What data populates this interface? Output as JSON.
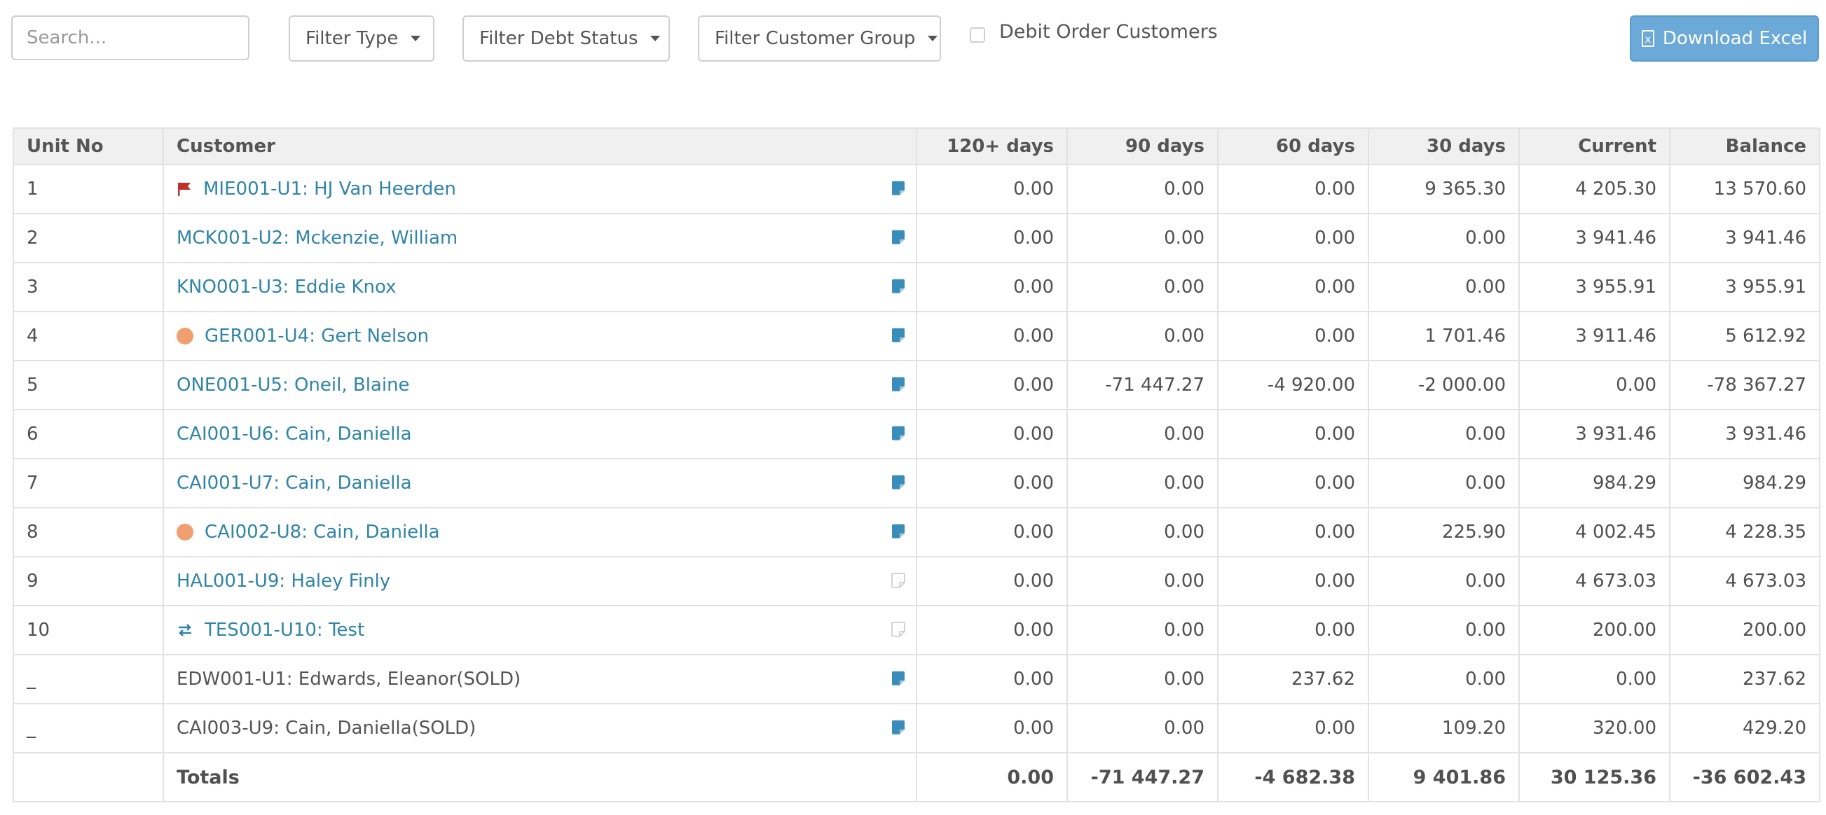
{
  "toolbar": {
    "search_placeholder": "Search...",
    "filter_type": "Filter Type",
    "filter_debt_status": "Filter Debt Status",
    "filter_customer_group": "Filter Customer Group",
    "debit_order_label": "Debit Order Customers",
    "debit_order_checked": false,
    "download_label": "Download Excel"
  },
  "colors": {
    "link": "#2f84a8",
    "accent_button": "#6aa9d8",
    "flag": "#c0302a",
    "dot": "#f0a070",
    "note_filled": "#3a8db8"
  },
  "table": {
    "headers": {
      "unit_no": "Unit No",
      "customer": "Customer",
      "d120": "120+ days",
      "d90": "90 days",
      "d60": "60 days",
      "d30": "30 days",
      "current": "Current",
      "balance": "Balance"
    },
    "rows": [
      {
        "unit": "1",
        "customer": "MIE001-U1: HJ Van Heerden",
        "status_icon": "flag-icon",
        "link": true,
        "note": "filled",
        "d120": "0.00",
        "d90": "0.00",
        "d60": "0.00",
        "d30": "9 365.30",
        "current": "4 205.30",
        "balance": "13 570.60"
      },
      {
        "unit": "2",
        "customer": "MCK001-U2: Mckenzie, William",
        "status_icon": "",
        "link": true,
        "note": "filled",
        "d120": "0.00",
        "d90": "0.00",
        "d60": "0.00",
        "d30": "0.00",
        "current": "3 941.46",
        "balance": "3 941.46"
      },
      {
        "unit": "3",
        "customer": "KNO001-U3: Eddie Knox",
        "status_icon": "",
        "link": true,
        "note": "filled",
        "d120": "0.00",
        "d90": "0.00",
        "d60": "0.00",
        "d30": "0.00",
        "current": "3 955.91",
        "balance": "3 955.91"
      },
      {
        "unit": "4",
        "customer": "GER001-U4: Gert Nelson",
        "status_icon": "dot-icon",
        "link": true,
        "note": "filled",
        "d120": "0.00",
        "d90": "0.00",
        "d60": "0.00",
        "d30": "1 701.46",
        "current": "3 911.46",
        "balance": "5 612.92"
      },
      {
        "unit": "5",
        "customer": "ONE001-U5: Oneil, Blaine",
        "status_icon": "",
        "link": true,
        "note": "filled",
        "d120": "0.00",
        "d90": "-71 447.27",
        "d60": "-4 920.00",
        "d30": "-2 000.00",
        "current": "0.00",
        "balance": "-78 367.27"
      },
      {
        "unit": "6",
        "customer": "CAI001-U6: Cain, Daniella",
        "status_icon": "",
        "link": true,
        "note": "filled",
        "d120": "0.00",
        "d90": "0.00",
        "d60": "0.00",
        "d30": "0.00",
        "current": "3 931.46",
        "balance": "3 931.46"
      },
      {
        "unit": "7",
        "customer": "CAI001-U7: Cain, Daniella",
        "status_icon": "",
        "link": true,
        "note": "filled",
        "d120": "0.00",
        "d90": "0.00",
        "d60": "0.00",
        "d30": "0.00",
        "current": "984.29",
        "balance": "984.29"
      },
      {
        "unit": "8",
        "customer": "CAI002-U8: Cain, Daniella",
        "status_icon": "dot-icon",
        "link": true,
        "note": "filled",
        "d120": "0.00",
        "d90": "0.00",
        "d60": "0.00",
        "d30": "225.90",
        "current": "4 002.45",
        "balance": "4 228.35"
      },
      {
        "unit": "9",
        "customer": "HAL001-U9: Haley Finly",
        "status_icon": "",
        "link": true,
        "note": "empty",
        "d120": "0.00",
        "d90": "0.00",
        "d60": "0.00",
        "d30": "0.00",
        "current": "4 673.03",
        "balance": "4 673.03"
      },
      {
        "unit": "10",
        "customer": "TES001-U10: Test",
        "status_icon": "transfer-icon",
        "link": true,
        "note": "empty",
        "d120": "0.00",
        "d90": "0.00",
        "d60": "0.00",
        "d30": "0.00",
        "current": "200.00",
        "balance": "200.00"
      },
      {
        "unit": "_",
        "customer": "EDW001-U1: Edwards, Eleanor(SOLD)",
        "status_icon": "",
        "link": false,
        "note": "filled",
        "d120": "0.00",
        "d90": "0.00",
        "d60": "237.62",
        "d30": "0.00",
        "current": "0.00",
        "balance": "237.62"
      },
      {
        "unit": "_",
        "customer": "CAI003-U9: Cain, Daniella(SOLD)",
        "status_icon": "",
        "link": false,
        "note": "filled",
        "d120": "0.00",
        "d90": "0.00",
        "d60": "0.00",
        "d30": "109.20",
        "current": "320.00",
        "balance": "429.20"
      }
    ],
    "totals": {
      "label": "Totals",
      "d120": "0.00",
      "d90": "-71 447.27",
      "d60": "-4 682.38",
      "d30": "9 401.86",
      "current": "30 125.36",
      "balance": "-36 602.43"
    }
  }
}
